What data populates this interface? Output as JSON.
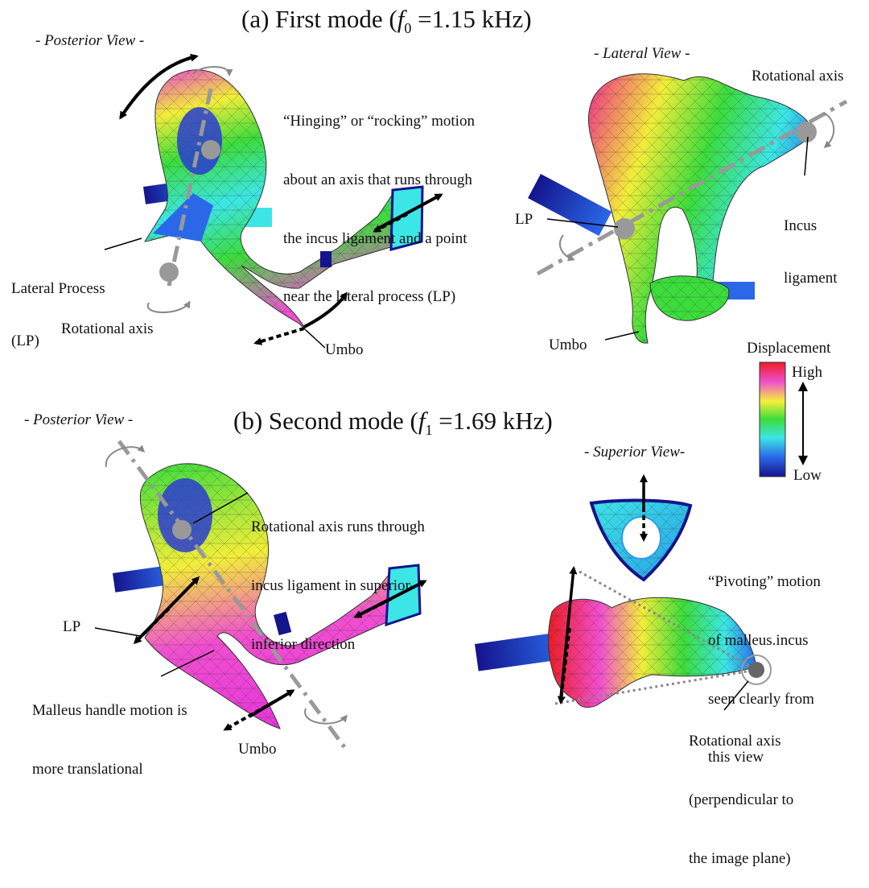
{
  "figure": {
    "mode_a": {
      "title_prefix": "(a) First mode (",
      "f_symbol": "f",
      "f_sub": "0",
      "title_value": " =1.15 kHz)",
      "posterior_view": "- Posterior View -",
      "lateral_view": "- Lateral View -",
      "hinge_caption": [
        "“Hinging” or “rocking” motion",
        "about an axis that runs through",
        "the incus ligament and a point",
        "near the lateral process (LP)"
      ],
      "lateral_process": [
        "Lateral Process",
        "(LP)"
      ],
      "rotational_axis_left": "Rotational axis",
      "umbo_left": "Umbo",
      "rotational_axis_right": "Rotational axis",
      "incus_ligament": [
        "Incus",
        "ligament"
      ],
      "lp_right": "LP",
      "umbo_right": "Umbo"
    },
    "mode_b": {
      "title_prefix": "(b) Second mode (",
      "f_symbol": "f",
      "f_sub": "1",
      "title_value": " =1.69 kHz)",
      "posterior_view": "- Posterior View -",
      "superior_view": "- Superior View-",
      "axis_caption": [
        "Rotational axis runs through",
        "incus ligament in superior-",
        "inferior direction"
      ],
      "lp": "LP",
      "malleus_caption": [
        "Malleus handle motion is",
        "more translational"
      ],
      "umbo": "Umbo",
      "pivot_caption": [
        "“Pivoting” motion",
        "of malleus.incus",
        "seen clearly from",
        "this view"
      ],
      "axis_perp_caption": [
        "Rotational axis",
        "(perpendicular to",
        "the image plane)"
      ]
    },
    "legend": {
      "title": "Displacement",
      "high": "High",
      "low": "Low",
      "colors": [
        "#ee1c24",
        "#f04fd0",
        "#f5f03a",
        "#3cdc3c",
        "#3ce6e6",
        "#2a68e8",
        "#14148c"
      ]
    }
  }
}
